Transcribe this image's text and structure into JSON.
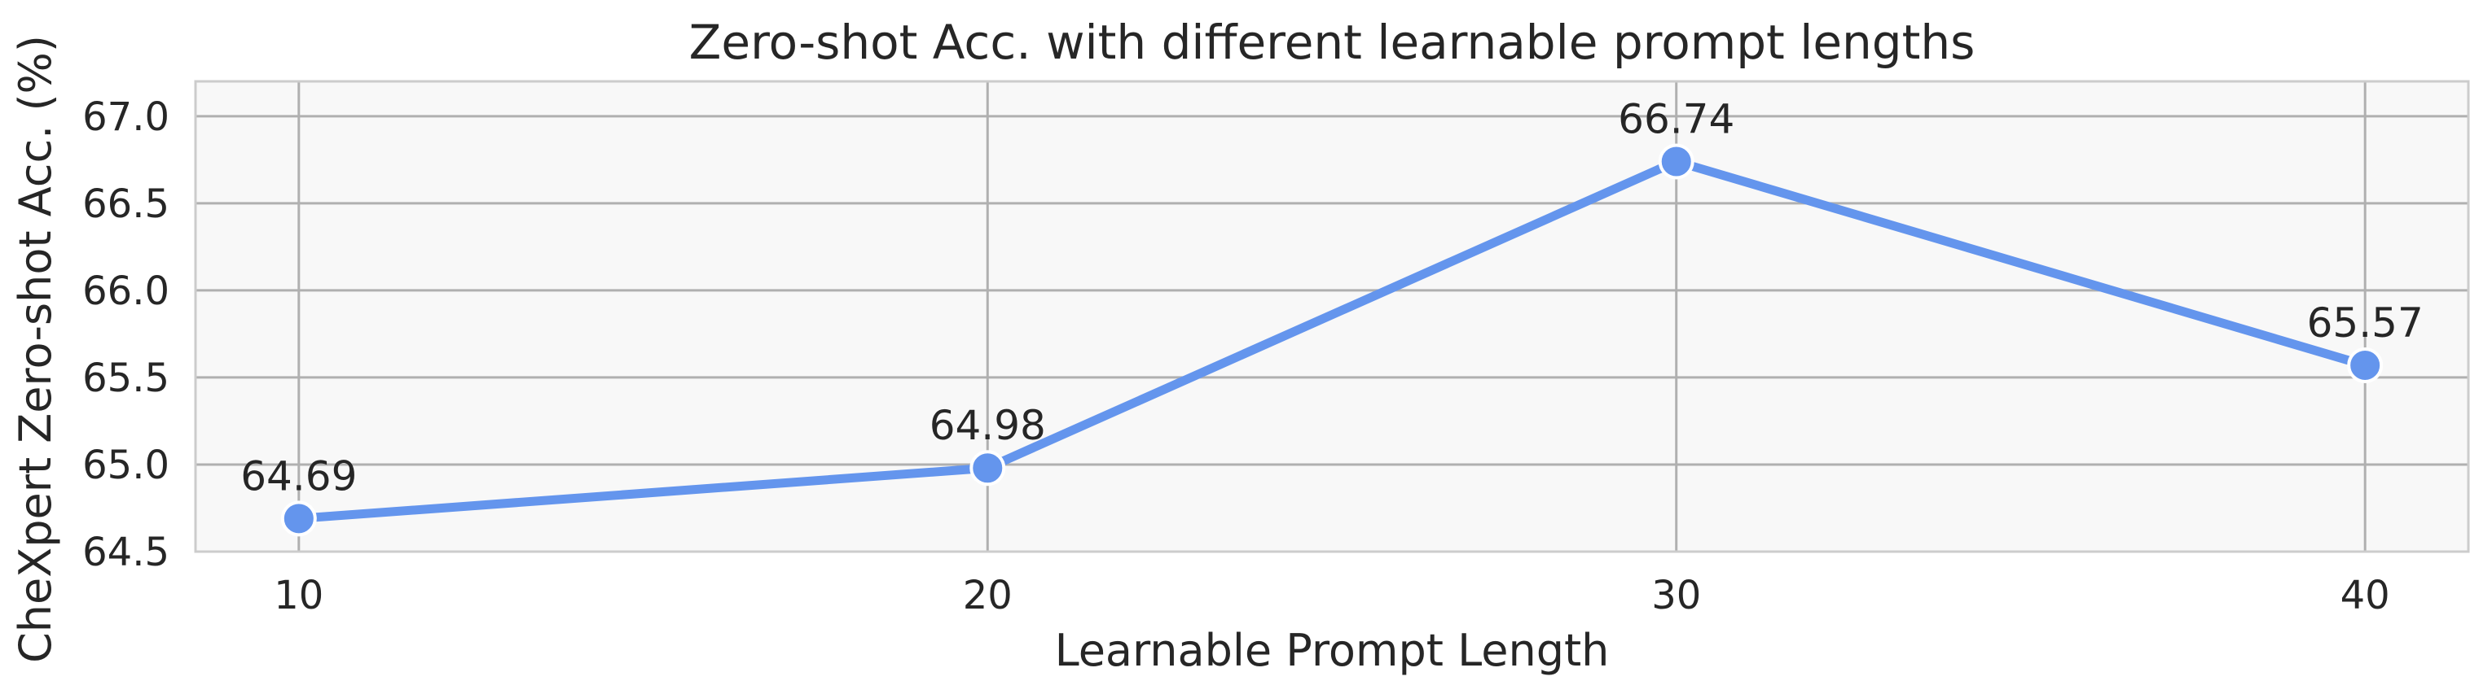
{
  "chart_data": {
    "type": "line",
    "title": "Zero-shot Acc. with different learnable prompt lengths",
    "xlabel": "Learnable Prompt Length",
    "ylabel": "CheXpert Zero-shot Acc. (%)",
    "x": [
      10,
      20,
      30,
      40
    ],
    "x_tick_labels": [
      "10",
      "20",
      "30",
      "40"
    ],
    "series": [
      {
        "values": [
          64.69,
          64.98,
          66.74,
          65.57
        ],
        "data_labels": [
          "64.69",
          "64.98",
          "66.74",
          "65.57"
        ],
        "color": "#6495ed"
      }
    ],
    "xlim": [
      8.5,
      41.5
    ],
    "ylim": [
      64.5,
      67.2
    ],
    "y_ticks": [
      64.5,
      65.0,
      65.5,
      66.0,
      66.5,
      67.0
    ],
    "y_tick_labels": [
      "64.5",
      "65.0",
      "65.5",
      "66.0",
      "66.5",
      "67.0"
    ],
    "grid": true,
    "legend": "none",
    "colors": {
      "plot_background": "#f8f8f8",
      "grid": "#b0b0b0",
      "line": "#6495ed",
      "marker_edge": "#ffffff",
      "text": "#262626"
    }
  }
}
